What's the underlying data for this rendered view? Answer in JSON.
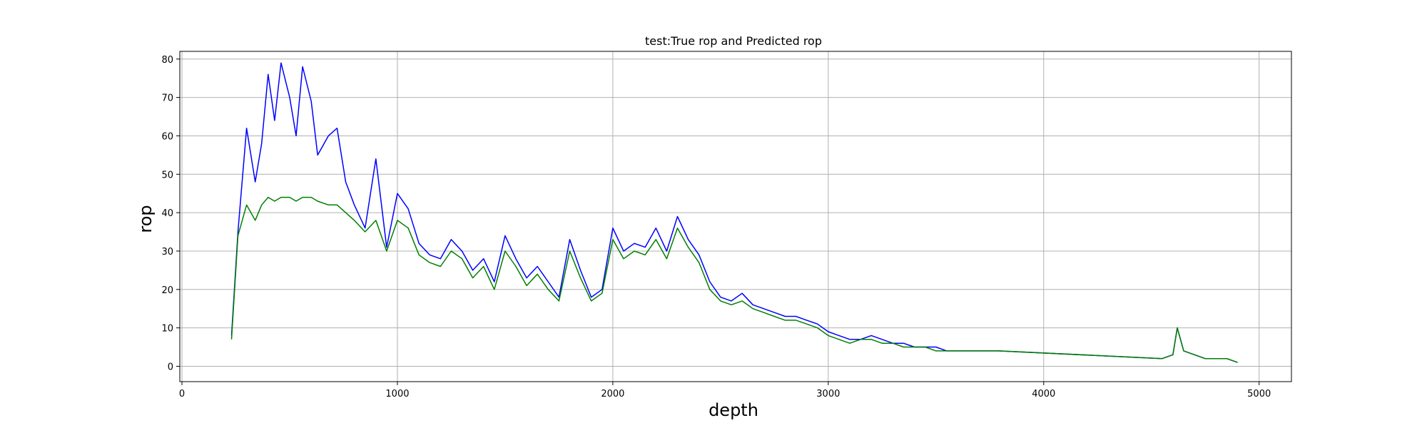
{
  "chart_data": {
    "type": "line",
    "title": "test:True rop and Predicted rop",
    "xlabel": "depth",
    "ylabel": "rop",
    "xlim": [
      -10,
      5150
    ],
    "ylim": [
      -4,
      82
    ],
    "xticks": [
      0,
      1000,
      2000,
      3000,
      4000,
      5000
    ],
    "yticks": [
      0,
      10,
      20,
      30,
      40,
      50,
      60,
      70,
      80
    ],
    "grid": true,
    "legend": "none",
    "series": [
      {
        "color": "#0000ff",
        "x": [
          230,
          260,
          300,
          340,
          370,
          400,
          430,
          460,
          500,
          530,
          560,
          600,
          630,
          680,
          720,
          760,
          800,
          850,
          900,
          950,
          1000,
          1050,
          1100,
          1150,
          1200,
          1250,
          1300,
          1350,
          1400,
          1450,
          1500,
          1550,
          1600,
          1650,
          1700,
          1750,
          1800,
          1850,
          1900,
          1950,
          2000,
          2050,
          2100,
          2150,
          2200,
          2250,
          2300,
          2350,
          2400,
          2450,
          2500,
          2550,
          2600,
          2650,
          2700,
          2750,
          2800,
          2850,
          2900,
          2950,
          3000,
          3050,
          3100,
          3150,
          3200,
          3250,
          3300,
          3350,
          3400,
          3450,
          3500,
          3550,
          3600,
          3650,
          3700,
          3750,
          3790,
          4550,
          4600,
          4620,
          4650,
          4700,
          4750,
          4800,
          4850,
          4900
        ],
        "y": [
          8,
          35,
          62,
          48,
          58,
          76,
          64,
          79,
          70,
          60,
          78,
          69,
          55,
          60,
          62,
          48,
          42,
          36,
          54,
          31,
          45,
          41,
          32,
          29,
          28,
          33,
          30,
          25,
          28,
          22,
          34,
          28,
          23,
          26,
          22,
          18,
          33,
          25,
          18,
          20,
          36,
          30,
          32,
          31,
          36,
          30,
          39,
          33,
          29,
          22,
          18,
          17,
          19,
          16,
          15,
          14,
          13,
          13,
          12,
          11,
          9,
          8,
          7,
          7,
          8,
          7,
          6,
          6,
          5,
          5,
          5,
          4,
          4,
          4,
          4,
          4,
          4,
          2,
          3,
          10,
          4,
          3,
          2,
          2,
          2,
          1
        ]
      },
      {
        "color": "#008000",
        "x": [
          230,
          260,
          300,
          340,
          370,
          400,
          430,
          460,
          500,
          530,
          560,
          600,
          630,
          680,
          720,
          760,
          800,
          850,
          900,
          950,
          1000,
          1050,
          1100,
          1150,
          1200,
          1250,
          1300,
          1350,
          1400,
          1450,
          1500,
          1550,
          1600,
          1650,
          1700,
          1750,
          1800,
          1850,
          1900,
          1950,
          2000,
          2050,
          2100,
          2150,
          2200,
          2250,
          2300,
          2350,
          2400,
          2450,
          2500,
          2550,
          2600,
          2650,
          2700,
          2750,
          2800,
          2850,
          2900,
          2950,
          3000,
          3050,
          3100,
          3150,
          3200,
          3250,
          3300,
          3350,
          3400,
          3450,
          3500,
          3550,
          3600,
          3650,
          3700,
          3750,
          3790,
          4550,
          4600,
          4620,
          4650,
          4700,
          4750,
          4800,
          4850,
          4900
        ],
        "y": [
          7,
          34,
          42,
          38,
          42,
          44,
          43,
          44,
          44,
          43,
          44,
          44,
          43,
          42,
          42,
          40,
          38,
          35,
          38,
          30,
          38,
          36,
          29,
          27,
          26,
          30,
          28,
          23,
          26,
          20,
          30,
          26,
          21,
          24,
          20,
          17,
          30,
          23,
          17,
          19,
          33,
          28,
          30,
          29,
          33,
          28,
          36,
          31,
          27,
          20,
          17,
          16,
          17,
          15,
          14,
          13,
          12,
          12,
          11,
          10,
          8,
          7,
          6,
          7,
          7,
          6,
          6,
          5,
          5,
          5,
          4,
          4,
          4,
          4,
          4,
          4,
          4,
          2,
          3,
          10,
          4,
          3,
          2,
          2,
          2,
          1
        ]
      }
    ]
  }
}
